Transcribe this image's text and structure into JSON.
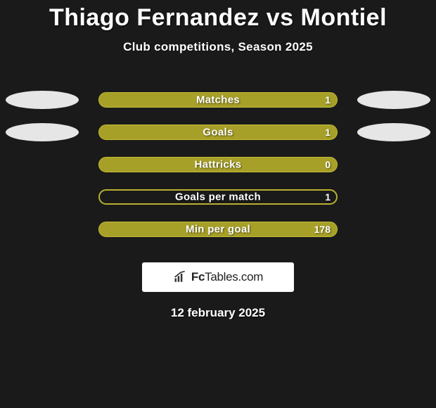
{
  "title": "Thiago Fernandez vs Montiel",
  "subtitle": "Club competitions, Season 2025",
  "bar_colors": {
    "fill": "#a7a028",
    "border": "#c4bc35",
    "track_border": "#b8b030"
  },
  "ellipse_color": "#e6e6e6",
  "rows": [
    {
      "label": "Matches",
      "value": "1",
      "fill_pct": 100,
      "left_ellipse": true,
      "right_ellipse": true,
      "outline_only": false
    },
    {
      "label": "Goals",
      "value": "1",
      "fill_pct": 100,
      "left_ellipse": true,
      "right_ellipse": true,
      "outline_only": false
    },
    {
      "label": "Hattricks",
      "value": "0",
      "fill_pct": 100,
      "left_ellipse": false,
      "right_ellipse": false,
      "outline_only": false
    },
    {
      "label": "Goals per match",
      "value": "1",
      "fill_pct": 100,
      "left_ellipse": false,
      "right_ellipse": false,
      "outline_only": true
    },
    {
      "label": "Min per goal",
      "value": "178",
      "fill_pct": 100,
      "left_ellipse": false,
      "right_ellipse": false,
      "outline_only": false
    }
  ],
  "branding": {
    "text_bold": "Fc",
    "text_rest": "Tables.com"
  },
  "date_text": "12 february 2025",
  "background_color": "#1a1a1a"
}
